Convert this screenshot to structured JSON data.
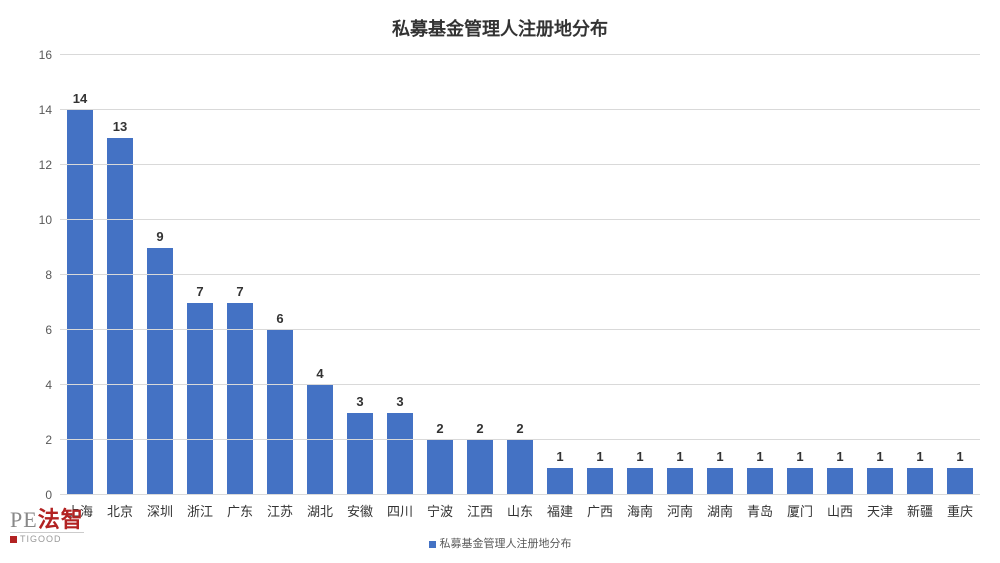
{
  "chart": {
    "type": "bar",
    "title": "私募基金管理人注册地分布",
    "title_fontsize": 18,
    "title_color": "#333333",
    "background_color": "#ffffff",
    "grid_color": "#d9d9d9",
    "axis_label_color": "#595959",
    "axis_label_fontsize": 12,
    "x_label_fontsize": 13,
    "bar_label_fontsize": 13,
    "ylim": [
      0,
      16
    ],
    "ytick_step": 2,
    "yticks": [
      0,
      2,
      4,
      6,
      8,
      10,
      12,
      14,
      16
    ],
    "bar_color": "#4472c4",
    "bar_width_ratio": 0.64,
    "categories": [
      "上海",
      "北京",
      "深圳",
      "浙江",
      "广东",
      "江苏",
      "湖北",
      "安徽",
      "四川",
      "宁波",
      "江西",
      "山东",
      "福建",
      "广西",
      "海南",
      "河南",
      "湖南",
      "青岛",
      "厦门",
      "山西",
      "天津",
      "新疆",
      "重庆"
    ],
    "values": [
      14,
      13,
      9,
      7,
      7,
      6,
      4,
      3,
      3,
      2,
      2,
      2,
      1,
      1,
      1,
      1,
      1,
      1,
      1,
      1,
      1,
      1,
      1
    ],
    "legend_label": "私募基金管理人注册地分布",
    "legend_fontsize": 11,
    "legend_marker_color": "#4472c4"
  },
  "watermark": {
    "pe": "PE",
    "fa": "法智",
    "sub": "TIGOOD"
  }
}
